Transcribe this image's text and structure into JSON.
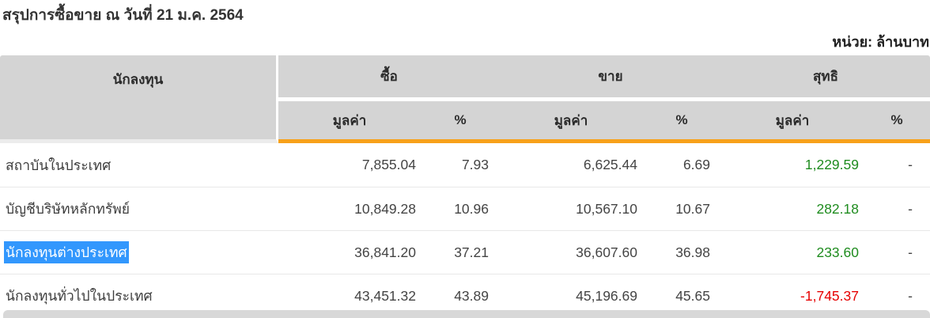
{
  "page": {
    "title": "สรุปการซื้อขาย ณ วันที่ 21 ม.ค. 2564",
    "unit_label": "หน่วย: ล้านบาท"
  },
  "table": {
    "col_investor": "นักลงทุน",
    "group_buy": "ซื้อ",
    "group_sell": "ขาย",
    "group_net": "สุทธิ",
    "sub_value": "มูลค่า",
    "sub_pct": "%",
    "rows": [
      {
        "investor": "สถาบันในประเทศ",
        "buy_value": "7,855.04",
        "buy_pct": "7.93",
        "sell_value": "6,625.44",
        "sell_pct": "6.69",
        "net_value": "1,229.59",
        "net_pct": "-",
        "net_state": "positive",
        "highlighted": false
      },
      {
        "investor": "บัญชีบริษัทหลักทรัพย์",
        "buy_value": "10,849.28",
        "buy_pct": "10.96",
        "sell_value": "10,567.10",
        "sell_pct": "10.67",
        "net_value": "282.18",
        "net_pct": "-",
        "net_state": "positive",
        "highlighted": false
      },
      {
        "investor": "นักลงทุนต่างประเทศ",
        "buy_value": "36,841.20",
        "buy_pct": "37.21",
        "sell_value": "36,607.60",
        "sell_pct": "36.98",
        "net_value": "233.60",
        "net_pct": "-",
        "net_state": "positive",
        "highlighted": true
      },
      {
        "investor": "นักลงทุนทั่วไปในประเทศ",
        "buy_value": "43,451.32",
        "buy_pct": "43.89",
        "sell_value": "45,196.69",
        "sell_pct": "45.65",
        "net_value": "-1,745.37",
        "net_pct": "-",
        "net_state": "negative",
        "highlighted": false
      }
    ]
  },
  "colors": {
    "accent_orange": "#f7a11a",
    "positive_green": "#1f8c1f",
    "negative_red": "#e60000",
    "selection_blue": "#3297fd",
    "header_gray": "#d4d4d4"
  }
}
